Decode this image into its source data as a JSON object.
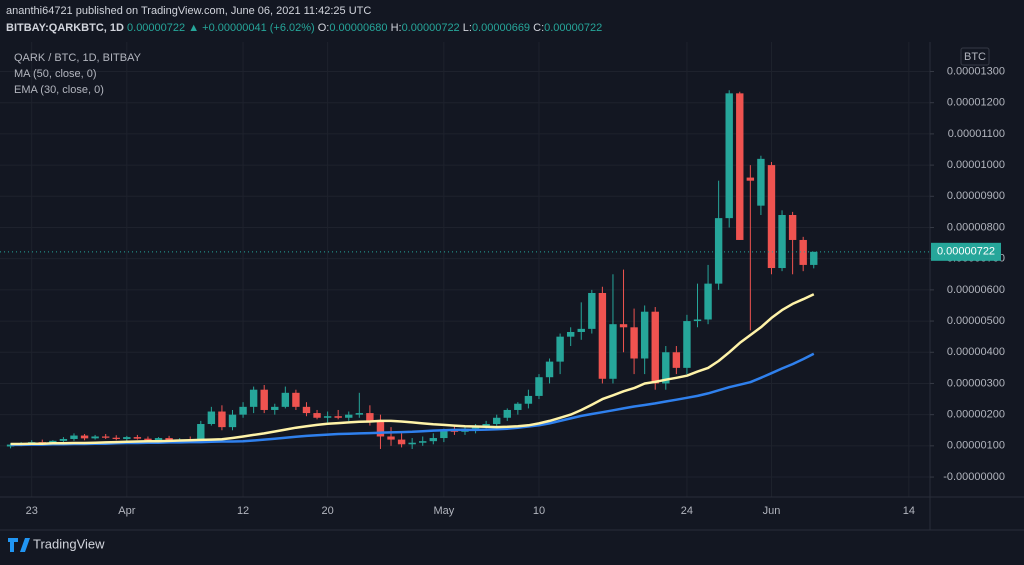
{
  "header": {
    "published": "ananthi64721 published on TradingView.com, June 06, 2021 11:42:25 UTC",
    "symbol": "BITBAY:QARKBTC, 1D",
    "last": "0.00000722",
    "change": "▲ +0.00000041 (+6.02%)",
    "ohlc": [
      {
        "label": "O:",
        "value": "0.00000680"
      },
      {
        "label": "H:",
        "value": "0.00000722"
      },
      {
        "label": "L:",
        "value": "0.00000669"
      },
      {
        "label": "C:",
        "value": "0.00000722"
      }
    ]
  },
  "footer": "TradingView",
  "chart_data": {
    "type": "candlestick",
    "title": "QARK / BTC, 1D, BITBAY",
    "y_unit": "BTC",
    "up_color": "#26a69a",
    "down_color": "#ef5350",
    "grid": true,
    "x": [
      "2021-03-21",
      "2021-03-22",
      "2021-03-23",
      "2021-03-24",
      "2021-03-25",
      "2021-03-26",
      "2021-03-27",
      "2021-03-28",
      "2021-03-29",
      "2021-03-30",
      "2021-03-31",
      "2021-04-01",
      "2021-04-02",
      "2021-04-03",
      "2021-04-04",
      "2021-04-05",
      "2021-04-06",
      "2021-04-07",
      "2021-04-08",
      "2021-04-09",
      "2021-04-10",
      "2021-04-11",
      "2021-04-12",
      "2021-04-13",
      "2021-04-14",
      "2021-04-15",
      "2021-04-16",
      "2021-04-17",
      "2021-04-18",
      "2021-04-19",
      "2021-04-20",
      "2021-04-21",
      "2021-04-22",
      "2021-04-23",
      "2021-04-24",
      "2021-04-25",
      "2021-04-26",
      "2021-04-27",
      "2021-04-28",
      "2021-04-29",
      "2021-04-30",
      "2021-05-01",
      "2021-05-02",
      "2021-05-03",
      "2021-05-04",
      "2021-05-05",
      "2021-05-06",
      "2021-05-07",
      "2021-05-08",
      "2021-05-09",
      "2021-05-10",
      "2021-05-11",
      "2021-05-12",
      "2021-05-13",
      "2021-05-14",
      "2021-05-15",
      "2021-05-16",
      "2021-05-17",
      "2021-05-18",
      "2021-05-19",
      "2021-05-20",
      "2021-05-21",
      "2021-05-22",
      "2021-05-23",
      "2021-05-24",
      "2021-05-25",
      "2021-05-26",
      "2021-05-27",
      "2021-05-28",
      "2021-05-29",
      "2021-05-30",
      "2021-05-31",
      "2021-06-01",
      "2021-06-02",
      "2021-06-03",
      "2021-06-04",
      "2021-06-05"
    ],
    "open": [
      9.8e-07,
      1.01e-06,
      1.08e-06,
      1.12e-06,
      1.07e-06,
      1.16e-06,
      1.22e-06,
      1.33e-06,
      1.24e-06,
      1.3e-06,
      1.26e-06,
      1.22e-06,
      1.28e-06,
      1.23e-06,
      1.18e-06,
      1.25e-06,
      1.14e-06,
      1.2e-06,
      1.16e-06,
      1.7e-06,
      2.1e-06,
      1.6e-06,
      2e-06,
      2.25e-06,
      2.8e-06,
      2.15e-06,
      2.25e-06,
      2.7e-06,
      2.25e-06,
      2.05e-06,
      1.9e-06,
      1.95e-06,
      1.9e-06,
      2e-06,
      2.05e-06,
      1.8e-06,
      1.3e-06,
      1.2e-06,
      1.05e-06,
      1.1e-06,
      1.15e-06,
      1.25e-06,
      1.5e-06,
      1.45e-06,
      1.55e-06,
      1.6e-06,
      1.7e-06,
      1.9e-06,
      2.15e-06,
      2.35e-06,
      2.6e-06,
      3.2e-06,
      3.7e-06,
      4.5e-06,
      4.65e-06,
      4.75e-06,
      5.9e-06,
      3.15e-06,
      4.9e-06,
      4.8e-06,
      3.8e-06,
      5.3e-06,
      3e-06,
      4e-06,
      3.5e-06,
      5e-06,
      5.05e-06,
      6.2e-06,
      8.3e-06,
      1.23e-05,
      9.6e-06,
      8.7e-06,
      1e-05,
      6.7e-06,
      8.4e-06,
      7.6e-06,
      6.8e-06
    ],
    "high": [
      1.08e-06,
      1.12e-06,
      1.18e-06,
      1.2e-06,
      1.18e-06,
      1.28e-06,
      1.4e-06,
      1.38e-06,
      1.35e-06,
      1.38e-06,
      1.34e-06,
      1.32e-06,
      1.35e-06,
      1.3e-06,
      1.28e-06,
      1.32e-06,
      1.25e-06,
      1.3e-06,
      1.8e-06,
      2.25e-06,
      2.3e-06,
      2.15e-06,
      2.4e-06,
      2.9e-06,
      2.95e-06,
      2.35e-06,
      2.9e-06,
      2.8e-06,
      2.4e-06,
      2.15e-06,
      2.1e-06,
      2.15e-06,
      2.1e-06,
      2.7e-06,
      2.3e-06,
      2e-06,
      1.6e-06,
      1.4e-06,
      1.25e-06,
      1.3e-06,
      1.4e-06,
      1.55e-06,
      1.65e-06,
      1.65e-06,
      1.7e-06,
      1.8e-06,
      2e-06,
      2.2e-06,
      2.4e-06,
      2.8e-06,
      3.3e-06,
      3.8e-06,
      4.6e-06,
      4.8e-06,
      5.6e-06,
      6e-06,
      6.1e-06,
      6.5e-06,
      6.65e-06,
      5.4e-06,
      5.5e-06,
      5.45e-06,
      4.2e-06,
      4.2e-06,
      5.2e-06,
      6.2e-06,
      6.8e-06,
      9.5e-06,
      1.24e-05,
      1.235e-05,
      1e-05,
      1.03e-05,
      1.01e-05,
      8.55e-06,
      8.5e-06,
      7.7e-06,
      7.22e-06
    ],
    "low": [
      9.2e-07,
      9.9e-07,
      1.04e-06,
      1.05e-06,
      1.04e-06,
      1.1e-06,
      1.16e-06,
      1.18e-06,
      1.2e-06,
      1.22e-06,
      1.18e-06,
      1.16e-06,
      1.2e-06,
      1.15e-06,
      1.12e-06,
      1.1e-06,
      1.08e-06,
      1.12e-06,
      1.12e-06,
      1.65e-06,
      1.5e-06,
      1.5e-06,
      1.9e-06,
      2.05e-06,
      2.05e-06,
      2e-06,
      2.2e-06,
      2.15e-06,
      1.95e-06,
      1.85e-06,
      1.75e-06,
      1.85e-06,
      1.8e-06,
      1.9e-06,
      1.65e-06,
      9e-07,
      1e-06,
      9.5e-07,
      9e-07,
      1e-06,
      1.05e-06,
      1.12e-06,
      1.35e-06,
      1.35e-06,
      1.4e-06,
      1.5e-06,
      1.6e-06,
      1.8e-06,
      2e-06,
      2.2e-06,
      2.5e-06,
      3e-06,
      3.3e-06,
      4.2e-06,
      4.4e-06,
      4.6e-06,
      3e-06,
      3e-06,
      4e-06,
      3.3e-06,
      3.3e-06,
      2.8e-06,
      2.8e-06,
      3.3e-06,
      3.3e-06,
      4.8e-06,
      4.9e-06,
      6e-06,
      8e-06,
      7.6e-06,
      4.7e-06,
      8.4e-06,
      6.5e-06,
      6.6e-06,
      6.5e-06,
      6.6e-06,
      6.69e-06
    ],
    "close": [
      1.04e-06,
      1.08e-06,
      1.12e-06,
      1.07e-06,
      1.16e-06,
      1.22e-06,
      1.33e-06,
      1.24e-06,
      1.3e-06,
      1.26e-06,
      1.22e-06,
      1.28e-06,
      1.23e-06,
      1.18e-06,
      1.25e-06,
      1.14e-06,
      1.2e-06,
      1.16e-06,
      1.7e-06,
      2.1e-06,
      1.6e-06,
      2e-06,
      2.25e-06,
      2.8e-06,
      2.15e-06,
      2.25e-06,
      2.7e-06,
      2.25e-06,
      2.05e-06,
      1.9e-06,
      1.95e-06,
      1.9e-06,
      2e-06,
      2.05e-06,
      1.8e-06,
      1.3e-06,
      1.2e-06,
      1.05e-06,
      1.1e-06,
      1.15e-06,
      1.25e-06,
      1.5e-06,
      1.45e-06,
      1.55e-06,
      1.6e-06,
      1.7e-06,
      1.9e-06,
      2.15e-06,
      2.35e-06,
      2.6e-06,
      3.2e-06,
      3.7e-06,
      4.5e-06,
      4.65e-06,
      4.75e-06,
      5.9e-06,
      3.15e-06,
      4.9e-06,
      4.8e-06,
      3.8e-06,
      5.3e-06,
      3e-06,
      4e-06,
      3.5e-06,
      5e-06,
      5.05e-06,
      6.2e-06,
      8.3e-06,
      1.23e-05,
      7.6e-06,
      9.5e-06,
      1.02e-05,
      6.7e-06,
      8.4e-06,
      7.6e-06,
      6.8e-06,
      7.22e-06
    ],
    "series": [
      {
        "name": "MA (50, close, 0)",
        "color": "#2f80ed",
        "values": [
          1.03e-06,
          1.03e-06,
          1.04e-06,
          1.04e-06,
          1.05e-06,
          1.05e-06,
          1.06e-06,
          1.06e-06,
          1.07e-06,
          1.07e-06,
          1.08e-06,
          1.09e-06,
          1.09e-06,
          1.1e-06,
          1.1e-06,
          1.11e-06,
          1.11e-06,
          1.12e-06,
          1.12e-06,
          1.13e-06,
          1.14e-06,
          1.14e-06,
          1.15e-06,
          1.17e-06,
          1.2e-06,
          1.23e-06,
          1.26e-06,
          1.29e-06,
          1.32e-06,
          1.34e-06,
          1.36e-06,
          1.38e-06,
          1.39e-06,
          1.4e-06,
          1.41e-06,
          1.42e-06,
          1.43e-06,
          1.44e-06,
          1.45e-06,
          1.47e-06,
          1.49e-06,
          1.5e-06,
          1.51e-06,
          1.51e-06,
          1.51e-06,
          1.52e-06,
          1.53e-06,
          1.55e-06,
          1.58e-06,
          1.62e-06,
          1.66e-06,
          1.72e-06,
          1.8e-06,
          1.88e-06,
          1.96e-06,
          2.02e-06,
          2.08e-06,
          2.14e-06,
          2.2e-06,
          2.26e-06,
          2.31e-06,
          2.36e-06,
          2.42e-06,
          2.48e-06,
          2.54e-06,
          2.6e-06,
          2.68e-06,
          2.78e-06,
          2.88e-06,
          2.96e-06,
          3.04e-06,
          3.18e-06,
          3.33e-06,
          3.48e-06,
          3.62e-06,
          3.78e-06,
          3.95e-06
        ]
      },
      {
        "name": "EMA (30, close, 0)",
        "color": "#fff3a8",
        "values": [
          1.06e-06,
          1.06e-06,
          1.07e-06,
          1.07e-06,
          1.08e-06,
          1.08e-06,
          1.09e-06,
          1.09e-06,
          1.1e-06,
          1.11e-06,
          1.12e-06,
          1.13e-06,
          1.14e-06,
          1.15e-06,
          1.15e-06,
          1.16e-06,
          1.17e-06,
          1.18e-06,
          1.19e-06,
          1.2e-06,
          1.21e-06,
          1.25e-06,
          1.3e-06,
          1.35e-06,
          1.4e-06,
          1.46e-06,
          1.52e-06,
          1.58e-06,
          1.63e-06,
          1.67e-06,
          1.71e-06,
          1.73e-06,
          1.75e-06,
          1.77e-06,
          1.78e-06,
          1.8e-06,
          1.8e-06,
          1.78e-06,
          1.75e-06,
          1.72e-06,
          1.69e-06,
          1.67e-06,
          1.65e-06,
          1.63e-06,
          1.62e-06,
          1.61e-06,
          1.6e-06,
          1.61e-06,
          1.63e-06,
          1.66e-06,
          1.72e-06,
          1.8e-06,
          1.9e-06,
          2e-06,
          2.15e-06,
          2.32e-06,
          2.5e-06,
          2.62e-06,
          2.75e-06,
          2.85e-06,
          3e-06,
          3.05e-06,
          3.12e-06,
          3.18e-06,
          3.25e-06,
          3.38e-06,
          3.5e-06,
          3.72e-06,
          4e-06,
          4.3e-06,
          4.55e-06,
          4.8e-06,
          5.1e-06,
          5.35e-06,
          5.55e-06,
          5.7e-06,
          5.86e-06
        ]
      }
    ],
    "last_price": {
      "value": 7.22e-06,
      "label": "0.00000722"
    },
    "xlim": [
      "2021-03-20",
      "2021-06-16"
    ],
    "xticks": [
      {
        "value": "2021-03-23",
        "label": "23"
      },
      {
        "value": "2021-04-01",
        "label": "Apr"
      },
      {
        "value": "2021-04-12",
        "label": "12"
      },
      {
        "value": "2021-04-20",
        "label": "20"
      },
      {
        "value": "2021-05-01",
        "label": "May"
      },
      {
        "value": "2021-05-10",
        "label": "10"
      },
      {
        "value": "2021-05-24",
        "label": "24"
      },
      {
        "value": "2021-06-01",
        "label": "Jun"
      },
      {
        "value": "2021-06-14",
        "label": "14"
      }
    ],
    "ylim": [
      -6.4e-07,
      1.385e-05
    ],
    "yticks": [
      {
        "value": 1.3e-05,
        "label": "0.00001300"
      },
      {
        "value": 1.2e-05,
        "label": "0.00001200"
      },
      {
        "value": 1.1e-05,
        "label": "0.00001100"
      },
      {
        "value": 1e-05,
        "label": "0.00001000"
      },
      {
        "value": 9e-06,
        "label": "0.00000900"
      },
      {
        "value": 8e-06,
        "label": "0.00000800"
      },
      {
        "value": 7e-06,
        "label": "0.00000700"
      },
      {
        "value": 6e-06,
        "label": "0.00000600"
      },
      {
        "value": 5e-06,
        "label": "0.00000500"
      },
      {
        "value": 4e-06,
        "label": "0.00000400"
      },
      {
        "value": 3e-06,
        "label": "0.00000300"
      },
      {
        "value": 2e-06,
        "label": "0.00000200"
      },
      {
        "value": 1e-06,
        "label": "0.00000100"
      },
      {
        "value": 0,
        "label": "-0.00000000"
      }
    ]
  }
}
